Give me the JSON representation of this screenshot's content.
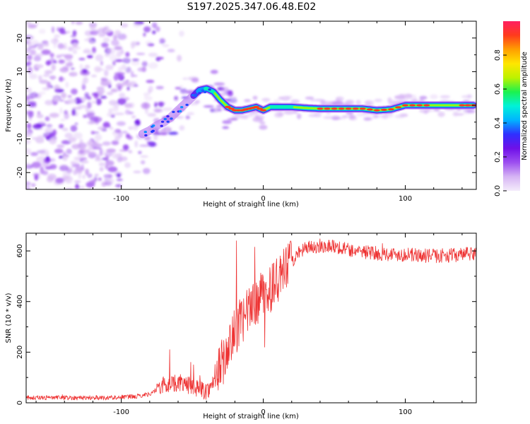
{
  "title": "S197.2025.347.06.48.E02",
  "chart_data": [
    {
      "type": "heatmap",
      "name": "spectrogram",
      "xlabel": "Height of straight line (km)",
      "ylabel": "Frequency (Hz)",
      "xlim": [
        -167,
        150
      ],
      "ylim": [
        -25,
        25
      ],
      "xticks": [
        -100,
        0,
        100
      ],
      "xtick_labels": [
        "-100",
        "0",
        "100"
      ],
      "yticks": [
        -20,
        -10,
        0,
        10,
        20
      ],
      "ytick_labels": [
        "-20",
        "-10",
        "0",
        "10",
        "20"
      ],
      "ridge": {
        "x": [
          -85,
          -80,
          -75,
          -70,
          -65,
          -60,
          -55,
          -50,
          -45,
          -40,
          -35,
          -30,
          -25,
          -20,
          -15,
          -10,
          -5,
          0,
          5,
          10,
          20,
          30,
          40,
          50,
          60,
          70,
          80,
          90,
          100,
          110,
          120,
          130,
          140,
          148
        ],
        "freq": [
          -8.5,
          -7.5,
          -6,
          -5,
          -3.5,
          -1.5,
          0.5,
          2.5,
          4.5,
          5,
          4,
          1.5,
          -0.5,
          -1.5,
          -1.5,
          -1,
          -0.5,
          -1.5,
          -0.5,
          -0.5,
          -0.5,
          -0.8,
          -1,
          -1,
          -1,
          -1,
          -1.5,
          -1.2,
          0,
          0,
          0,
          0,
          0,
          0
        ],
        "amplitude": [
          0.25,
          0.3,
          0.3,
          0.3,
          0.3,
          0.25,
          0.25,
          0.3,
          0.5,
          0.6,
          0.7,
          0.75,
          0.8,
          0.9,
          0.9,
          0.85,
          0.8,
          0.85,
          0.7,
          0.7,
          0.7,
          0.75,
          0.8,
          0.85,
          0.85,
          0.8,
          0.9,
          0.85,
          0.9,
          0.85,
          0.75,
          0.75,
          0.8,
          0.9
        ]
      },
      "noise_region_x": [
        -167,
        -85
      ]
    },
    {
      "type": "line",
      "name": "snr",
      "xlabel": "Height of straight line (km)",
      "ylabel": "SNR (10 * v/v)",
      "xlim": [
        -167,
        150
      ],
      "ylim": [
        0,
        670
      ],
      "xticks": [
        -100,
        0,
        100
      ],
      "xtick_labels": [
        "-100",
        "0",
        "100"
      ],
      "yticks": [
        0,
        200,
        400,
        600
      ],
      "ytick_labels": [
        "0",
        "200",
        "400",
        "600"
      ],
      "color": "#ee3333",
      "trend": {
        "x": [
          -167,
          -110,
          -90,
          -80,
          -70,
          -60,
          -50,
          -40,
          -35,
          -30,
          -25,
          -20,
          -15,
          -10,
          -5,
          0,
          5,
          10,
          15,
          20,
          25,
          30,
          40,
          50,
          60,
          80,
          100,
          120,
          140,
          150
        ],
        "y": [
          20,
          20,
          25,
          35,
          70,
          80,
          65,
          45,
          80,
          150,
          200,
          280,
          330,
          360,
          400,
          430,
          450,
          480,
          520,
          560,
          590,
          610,
          620,
          620,
          605,
          590,
          585,
          580,
          585,
          590
        ]
      },
      "spikes": [
        {
          "x": -66,
          "y": 210
        },
        {
          "x": -51,
          "y": 160
        },
        {
          "x": -49,
          "y": 150
        },
        {
          "x": -19,
          "y": 640
        },
        {
          "x": -6,
          "y": 615
        },
        {
          "x": -1,
          "y": 450
        },
        {
          "x": 1,
          "y": 220
        }
      ]
    }
  ],
  "colorbar": {
    "label": "Normalized spectral amplitude",
    "range": [
      0,
      1
    ],
    "ticks": [
      0.0,
      0.2,
      0.4,
      0.6,
      0.8
    ],
    "tick_labels": [
      "0.0",
      "0.2",
      "0.4",
      "0.6",
      "0.8"
    ],
    "stops": [
      "#f4ecfb",
      "#d6b4f4",
      "#9d4ff0",
      "#6f10e8",
      "#2f2fff",
      "#00b4ff",
      "#00f2d8",
      "#1cf24e",
      "#bdf200",
      "#ffe600",
      "#ff9f00",
      "#ff3b1c",
      "#ff1f60"
    ]
  }
}
